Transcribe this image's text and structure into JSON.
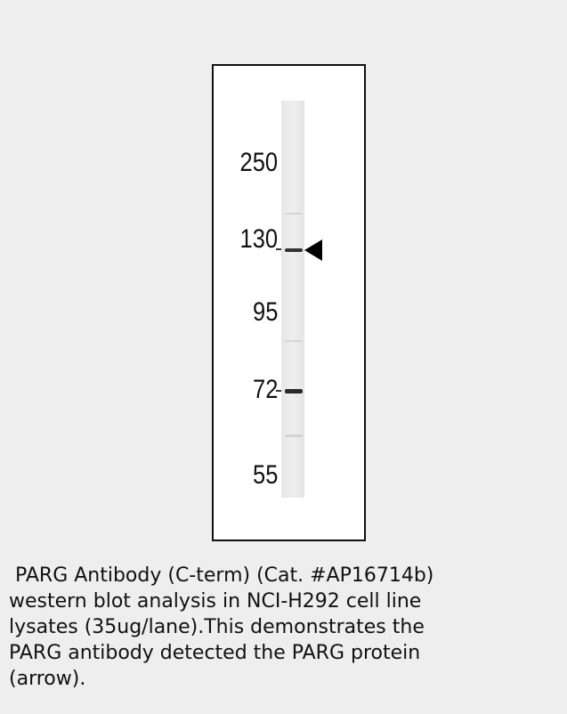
{
  "blot": {
    "markers": [
      "250",
      "130",
      "95",
      "72",
      "55"
    ]
  },
  "caption": {
    "lines": [
      " PARG Antibody (C-term) (Cat. #AP16714b)",
      "western blot analysis in NCI-H292 cell line",
      "lysates (35ug/lane).This demonstrates the",
      "PARG antibody detected the PARG protein",
      "(arrow)."
    ]
  }
}
